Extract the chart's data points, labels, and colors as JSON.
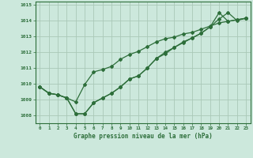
{
  "xlabel": "Graphe pression niveau de la mer (hPa)",
  "background_color": "#cce8dc",
  "plot_bg_color": "#cce8dc",
  "grid_color": "#aac8b8",
  "line_color": "#2d6e3a",
  "marker_color": "#2d6e3a",
  "ylim": [
    1007.5,
    1015.2
  ],
  "xlim": [
    -0.5,
    23.5
  ],
  "yticks": [
    1008,
    1009,
    1010,
    1011,
    1012,
    1013,
    1014,
    1015
  ],
  "xticks": [
    0,
    1,
    2,
    3,
    4,
    5,
    6,
    7,
    8,
    9,
    10,
    11,
    12,
    13,
    14,
    15,
    16,
    17,
    18,
    19,
    20,
    21,
    22,
    23
  ],
  "series1": [
    1009.8,
    1009.4,
    1009.3,
    1009.1,
    1008.1,
    1008.1,
    1008.8,
    1009.1,
    1009.4,
    1009.8,
    1010.3,
    1010.5,
    1011.0,
    1011.6,
    1011.9,
    1012.3,
    1012.6,
    1012.9,
    1013.2,
    1013.6,
    1014.5,
    1013.95,
    1014.05,
    1014.15
  ],
  "series2": [
    1009.8,
    1009.4,
    1009.3,
    1009.1,
    1008.85,
    1009.95,
    1010.75,
    1010.9,
    1011.1,
    1011.55,
    1011.85,
    1012.05,
    1012.35,
    1012.65,
    1012.85,
    1012.95,
    1013.15,
    1013.25,
    1013.45,
    1013.65,
    1013.85,
    1013.95,
    1014.05,
    1014.15
  ],
  "series3": [
    1009.8,
    1009.4,
    1009.3,
    1009.1,
    1008.1,
    1008.1,
    1008.8,
    1009.1,
    1009.4,
    1009.8,
    1010.3,
    1010.5,
    1011.0,
    1011.6,
    1012.0,
    1012.3,
    1012.65,
    1012.9,
    1013.2,
    1013.6,
    1014.1,
    1014.5,
    1014.0,
    1014.15
  ]
}
